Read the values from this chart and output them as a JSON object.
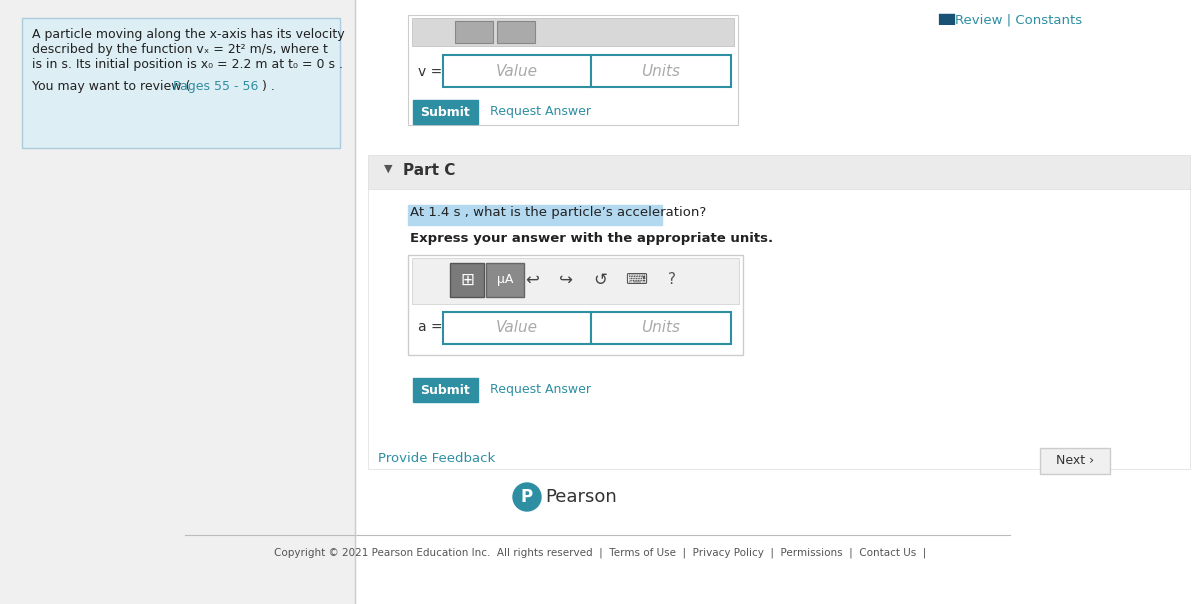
{
  "bg_color": "#f0f0f0",
  "white": "#ffffff",
  "teal_btn": "#2e8fa3",
  "teal_link": "#2e8fa3",
  "teal_border": "#2e8fa3",
  "light_blue_bg": "#ddeef4",
  "highlight_blue": "#b3d9f0",
  "review_text": "Review | Constants",
  "part_c_label": "Part C",
  "question_text": "At 1.4 s , what is the particle’s acceleration?",
  "express_text": "Express your answer with the appropriate units.",
  "value_placeholder": "Value",
  "units_placeholder": "Units",
  "submit_text": "Submit",
  "request_answer_text": "Request Answer",
  "provide_feedback_text": "Provide Feedback",
  "next_text": "Next ›",
  "copyright_text": "Copyright © 2021 Pearson Education Inc.  All rights reserved  |  Terms of Use  |  Privacy Policy  |  Permissions  |  Contact Us  |"
}
